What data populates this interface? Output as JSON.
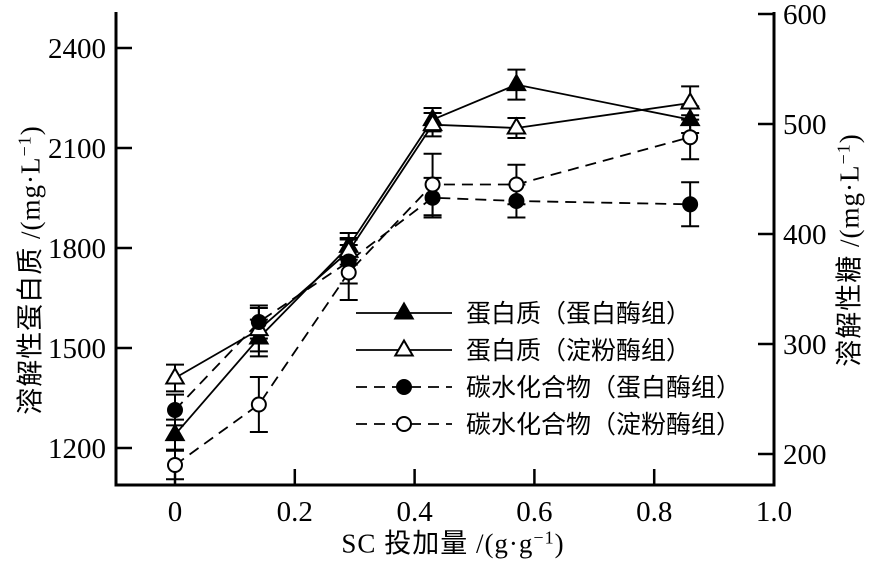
{
  "chart_data": {
    "type": "line",
    "title": "",
    "x": [
      0,
      0.14,
      0.29,
      0.43,
      0.57,
      0.86
    ],
    "xlabel": {
      "text": "SC 投加量 /(g·g−1)",
      "pre": "SC 投加量 /(g·g",
      "sup": "−1",
      "post": ")"
    },
    "x_axis": {
      "tick_values": [
        0,
        0.2,
        0.4,
        0.6,
        0.8,
        1.0
      ],
      "tick_labels": [
        "0",
        "0.2",
        "0.4",
        "0.6",
        "0.8",
        "1.0"
      ],
      "range": [
        -0.1,
        1.0
      ]
    },
    "left_axis": {
      "label_text": "溶解性蛋白质 /(mg·L−1)",
      "label_pre": "溶解性蛋白质 /(mg·L",
      "label_sup": "−1",
      "label_post": ")",
      "tick_values": [
        1200,
        1500,
        1800,
        2100,
        2400
      ],
      "tick_labels": [
        "1200",
        "1500",
        "1800",
        "2100",
        "2400"
      ],
      "range": [
        1090,
        2508
      ]
    },
    "right_axis": {
      "label_text": "溶解性糖 /(mg·L−1)",
      "label_pre": "溶解性糖 /(mg·L",
      "label_sup": "−1",
      "label_post": ")",
      "tick_values": [
        200,
        300,
        400,
        500,
        600
      ],
      "tick_labels": [
        "200",
        "300",
        "400",
        "500",
        "600"
      ],
      "range": [
        172,
        602
      ]
    },
    "series": [
      {
        "name": "protein-protease",
        "label": "蛋白质（蛋白酶组）",
        "axis": "left",
        "marker": "triangle-filled",
        "line": "solid",
        "values": [
          1240,
          1530,
          1805,
          2185,
          2290,
          2185
        ],
        "errors": [
          45,
          55,
          40,
          35,
          45,
          40
        ]
      },
      {
        "name": "protein-amylase",
        "label": "蛋白质（淀粉酶组）",
        "axis": "left",
        "marker": "triangle-open",
        "line": "solid",
        "values": [
          1410,
          1555,
          1790,
          2170,
          2160,
          2235
        ],
        "errors": [
          40,
          65,
          40,
          35,
          30,
          50
        ]
      },
      {
        "name": "carbohydrate-protease",
        "label": "碳水化合物（蛋白酶组）",
        "axis": "right",
        "marker": "circle-filled",
        "line": "dashed",
        "values": [
          240,
          320,
          375,
          433,
          430,
          427
        ],
        "errors": [
          14,
          15,
          20,
          18,
          15,
          20
        ]
      },
      {
        "name": "carbohydrate-amylase",
        "label": "碳水化合物（淀粉酶组）",
        "axis": "right",
        "marker": "circle-open",
        "line": "dashed",
        "values": [
          190,
          245,
          365,
          445,
          445,
          488
        ],
        "errors": [
          13,
          25,
          25,
          28,
          18,
          20
        ]
      }
    ],
    "grid": false,
    "legend_position": "center-right-inside",
    "colors": {
      "foreground": "#000000",
      "background": "#ffffff"
    }
  }
}
